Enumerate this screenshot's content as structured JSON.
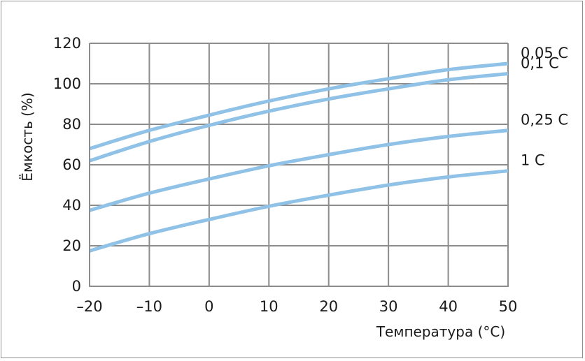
{
  "chart_data": {
    "type": "line",
    "xlabel": "Температура (°C)",
    "ylabel": "Ёмкость (%)",
    "xlim": [
      -20,
      50
    ],
    "ylim": [
      0,
      120
    ],
    "x_ticks": [
      -20,
      -10,
      0,
      10,
      20,
      30,
      40,
      50
    ],
    "x_tick_labels": [
      "–20",
      "–10",
      "0",
      "10",
      "20",
      "30",
      "40",
      "50"
    ],
    "y_ticks": [
      0,
      20,
      40,
      60,
      80,
      100,
      120
    ],
    "y_tick_labels": [
      "0",
      "20",
      "40",
      "60",
      "80",
      "100",
      "120"
    ],
    "grid": true,
    "legend": "curve labels at right end",
    "line_color": "#8fc2e6",
    "x": [
      -20,
      -10,
      0,
      10,
      20,
      30,
      40,
      50
    ],
    "series": [
      {
        "name": "0,05 C",
        "values": [
          68,
          77,
          84.5,
          91.5,
          97.5,
          102.5,
          107,
          110
        ]
      },
      {
        "name": "0,1 C",
        "values": [
          62,
          71.5,
          79.5,
          86.5,
          92.5,
          97.5,
          102,
          105
        ]
      },
      {
        "name": "0,25 C",
        "values": [
          37.5,
          46,
          53,
          59.5,
          65,
          70,
          74,
          77
        ]
      },
      {
        "name": "1 C",
        "values": [
          17.5,
          26,
          33,
          39.5,
          45,
          50,
          54,
          57
        ]
      }
    ]
  }
}
